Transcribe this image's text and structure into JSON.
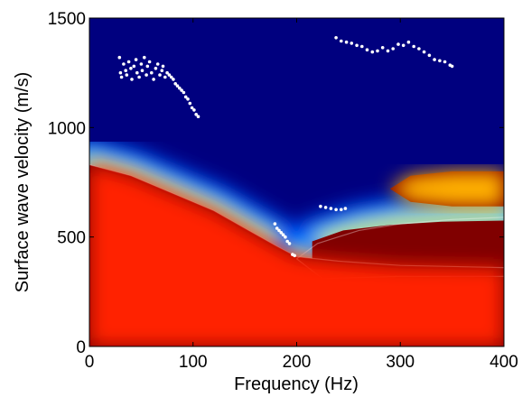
{
  "chart_data": {
    "type": "heatmap",
    "title": "",
    "xlabel": "Frequency (Hz)",
    "ylabel": "Surface wave velocity (m/s)",
    "xlim": [
      0,
      400
    ],
    "ylim": [
      0,
      1500
    ],
    "xticks": [
      0,
      100,
      200,
      300,
      400
    ],
    "yticks": [
      0,
      500,
      1000,
      1500
    ],
    "colormap": "jet",
    "colors": {
      "saturated_region": "#800000",
      "background_low": "#00007f",
      "picked_points": "#ffffff"
    },
    "ridges": [
      {
        "name": "",
        "points": [
          [
            0,
            830
          ],
          [
            40,
            780
          ],
          [
            80,
            700
          ],
          [
            120,
            620
          ],
          [
            150,
            540
          ],
          [
            180,
            460
          ],
          [
            200,
            410
          ],
          [
            240,
            390
          ],
          [
            300,
            370
          ],
          [
            400,
            360
          ]
        ]
      },
      {
        "name": "",
        "points": [
          [
            200,
            400
          ],
          [
            220,
            470
          ],
          [
            260,
            530
          ],
          [
            300,
            560
          ],
          [
            350,
            580
          ],
          [
            400,
            590
          ]
        ]
      },
      {
        "name": "",
        "points": [
          [
            200,
            400
          ],
          [
            225,
            310
          ],
          [
            300,
            320
          ],
          [
            400,
            320
          ]
        ]
      }
    ],
    "picked_points": [
      [
        29,
        1320
      ],
      [
        30,
        1250
      ],
      [
        31,
        1230
      ],
      [
        33,
        1290
      ],
      [
        35,
        1260
      ],
      [
        36,
        1240
      ],
      [
        38,
        1300
      ],
      [
        40,
        1270
      ],
      [
        41,
        1220
      ],
      [
        43,
        1280
      ],
      [
        45,
        1310
      ],
      [
        46,
        1250
      ],
      [
        48,
        1230
      ],
      [
        50,
        1290
      ],
      [
        51,
        1260
      ],
      [
        53,
        1320
      ],
      [
        55,
        1240
      ],
      [
        56,
        1280
      ],
      [
        58,
        1300
      ],
      [
        60,
        1250
      ],
      [
        62,
        1220
      ],
      [
        64,
        1270
      ],
      [
        66,
        1290
      ],
      [
        68,
        1240
      ],
      [
        70,
        1260
      ],
      [
        71,
        1280
      ],
      [
        73,
        1230
      ],
      [
        75,
        1250
      ],
      [
        77,
        1240
      ],
      [
        79,
        1230
      ],
      [
        81,
        1220
      ],
      [
        83,
        1200
      ],
      [
        85,
        1190
      ],
      [
        87,
        1180
      ],
      [
        89,
        1170
      ],
      [
        91,
        1160
      ],
      [
        93,
        1140
      ],
      [
        95,
        1130
      ],
      [
        97,
        1110
      ],
      [
        99,
        1090
      ],
      [
        101,
        1080
      ],
      [
        103,
        1060
      ],
      [
        105,
        1050
      ],
      [
        179,
        560
      ],
      [
        181,
        540
      ],
      [
        183,
        530
      ],
      [
        185,
        520
      ],
      [
        187,
        510
      ],
      [
        189,
        500
      ],
      [
        191,
        480
      ],
      [
        193,
        470
      ],
      [
        196,
        420
      ],
      [
        198,
        415
      ],
      [
        223,
        640
      ],
      [
        228,
        635
      ],
      [
        233,
        630
      ],
      [
        238,
        625
      ],
      [
        243,
        625
      ],
      [
        247,
        630
      ],
      [
        238,
        1410
      ],
      [
        243,
        1395
      ],
      [
        248,
        1390
      ],
      [
        253,
        1385
      ],
      [
        258,
        1375
      ],
      [
        263,
        1370
      ],
      [
        268,
        1355
      ],
      [
        273,
        1345
      ],
      [
        278,
        1350
      ],
      [
        283,
        1365
      ],
      [
        288,
        1350
      ],
      [
        293,
        1360
      ],
      [
        298,
        1380
      ],
      [
        303,
        1375
      ],
      [
        308,
        1390
      ],
      [
        313,
        1370
      ],
      [
        318,
        1360
      ],
      [
        323,
        1345
      ],
      [
        328,
        1330
      ],
      [
        333,
        1310
      ],
      [
        338,
        1305
      ],
      [
        343,
        1300
      ],
      [
        348,
        1285
      ],
      [
        350,
        1280
      ]
    ]
  }
}
